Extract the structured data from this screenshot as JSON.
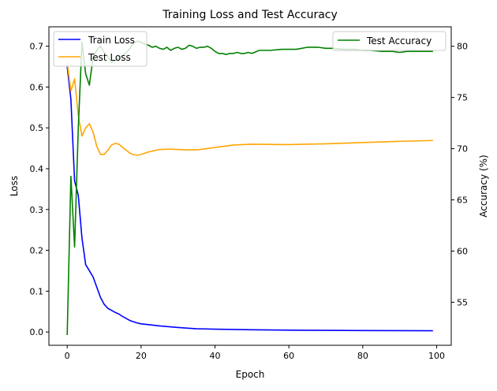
{
  "chart_data": {
    "type": "line",
    "title": "Training Loss and Test Accuracy",
    "xlabel": "Epoch",
    "ylabel": "Loss",
    "ylabel_right": "Accuracy (%)",
    "xlim": [
      -4.95,
      103.95
    ],
    "ylim": [
      -0.0325,
      0.7475
    ],
    "ylim_right": [
      50.8,
      81.9
    ],
    "x_ticks": [
      0,
      20,
      40,
      60,
      80,
      100
    ],
    "y_ticks": [
      0.0,
      0.1,
      0.2,
      0.3,
      0.4,
      0.5,
      0.6,
      0.7
    ],
    "y_right_ticks": [
      55,
      60,
      65,
      70,
      75,
      80
    ],
    "grid": false,
    "legend_left_placement": "upper-left",
    "legend_right_placement": "upper-right",
    "series": [
      {
        "name": "Train Loss",
        "axis": "left",
        "color": "#0000ff",
        "x": [
          0,
          1,
          2,
          3,
          4,
          5,
          6,
          7,
          8,
          9,
          10,
          11,
          12,
          13,
          14,
          15,
          16,
          17,
          18,
          19,
          20,
          22,
          25,
          30,
          35,
          40,
          50,
          60,
          70,
          80,
          90,
          99
        ],
        "values": [
          0.65,
          0.57,
          0.37,
          0.335,
          0.23,
          0.165,
          0.15,
          0.135,
          0.11,
          0.085,
          0.068,
          0.058,
          0.053,
          0.048,
          0.044,
          0.038,
          0.033,
          0.028,
          0.025,
          0.022,
          0.02,
          0.018,
          0.015,
          0.011,
          0.008,
          0.007,
          0.0055,
          0.0045,
          0.004,
          0.0035,
          0.0033,
          0.003
        ]
      },
      {
        "name": "Test Loss",
        "axis": "left",
        "color": "#ffa500",
        "x": [
          0,
          1,
          2,
          3,
          4,
          5,
          6,
          7,
          8,
          9,
          10,
          11,
          12,
          13,
          14,
          15,
          16,
          17,
          18,
          19,
          20,
          22,
          25,
          28,
          30,
          33,
          36,
          40,
          45,
          50,
          60,
          70,
          80,
          90,
          99
        ],
        "values": [
          0.66,
          0.59,
          0.62,
          0.53,
          0.48,
          0.5,
          0.51,
          0.49,
          0.455,
          0.435,
          0.435,
          0.445,
          0.458,
          0.462,
          0.46,
          0.452,
          0.445,
          0.438,
          0.434,
          0.433,
          0.435,
          0.441,
          0.447,
          0.448,
          0.447,
          0.446,
          0.447,
          0.452,
          0.458,
          0.46,
          0.459,
          0.461,
          0.464,
          0.467,
          0.469
        ]
      },
      {
        "name": "Test Accuracy",
        "axis": "right",
        "color": "#008000",
        "x": [
          0,
          1,
          2,
          3,
          4,
          5,
          6,
          7,
          8,
          9,
          10,
          11,
          12,
          13,
          14,
          15,
          16,
          17,
          18,
          19,
          20,
          21,
          22,
          23,
          24,
          25,
          26,
          27,
          28,
          29,
          30,
          31,
          32,
          33,
          34,
          35,
          36,
          37,
          38,
          39,
          40,
          41,
          42,
          43,
          44,
          45,
          46,
          47,
          48,
          49,
          50,
          52,
          55,
          58,
          60,
          62,
          65,
          68,
          70,
          72,
          75,
          78,
          80,
          82,
          85,
          88,
          90,
          92,
          95,
          99
        ],
        "values": [
          51.8,
          67.3,
          60.4,
          72.0,
          80.4,
          77.3,
          76.2,
          78.9,
          79.6,
          80.0,
          79.4,
          79.0,
          78.4,
          78.6,
          78.9,
          79.1,
          79.4,
          79.8,
          80.3,
          80.5,
          80.4,
          80.2,
          80.1,
          79.9,
          80.0,
          79.8,
          79.7,
          79.9,
          79.6,
          79.8,
          79.9,
          79.7,
          79.8,
          80.1,
          80.0,
          79.8,
          79.9,
          79.9,
          80.0,
          79.8,
          79.5,
          79.3,
          79.3,
          79.2,
          79.3,
          79.3,
          79.4,
          79.3,
          79.3,
          79.4,
          79.3,
          79.6,
          79.6,
          79.7,
          79.7,
          79.7,
          79.9,
          79.9,
          79.8,
          79.8,
          79.7,
          79.7,
          79.6,
          79.6,
          79.5,
          79.5,
          79.4,
          79.5,
          79.5,
          79.5
        ]
      }
    ]
  }
}
